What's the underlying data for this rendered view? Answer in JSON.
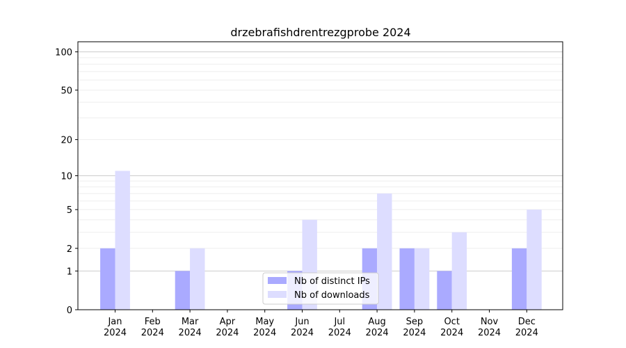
{
  "chart_data": {
    "type": "bar",
    "title": "drzebrafishdrentrezgprobe 2024",
    "xlabel": "",
    "ylabel": "",
    "y_scale": "symlog",
    "ylim": [
      0,
      120
    ],
    "y_ticks": [
      0,
      1,
      2,
      5,
      10,
      20,
      50,
      100
    ],
    "grid": true,
    "legend_position": "bottom-center",
    "categories": [
      [
        "Jan",
        "2024"
      ],
      [
        "Feb",
        "2024"
      ],
      [
        "Mar",
        "2024"
      ],
      [
        "Apr",
        "2024"
      ],
      [
        "May",
        "2024"
      ],
      [
        "Jun",
        "2024"
      ],
      [
        "Jul",
        "2024"
      ],
      [
        "Aug",
        "2024"
      ],
      [
        "Sep",
        "2024"
      ],
      [
        "Oct",
        "2024"
      ],
      [
        "Nov",
        "2024"
      ],
      [
        "Dec",
        "2024"
      ]
    ],
    "series": [
      {
        "name": "Nb of distinct IPs",
        "color": "#aaaaff",
        "values": [
          2,
          0,
          1,
          0,
          0,
          1,
          0,
          2,
          2,
          1,
          0,
          2
        ]
      },
      {
        "name": "Nb of downloads",
        "color": "#ddddff",
        "values": [
          11,
          0,
          2,
          0,
          0,
          4,
          0,
          7,
          2,
          3,
          0,
          5
        ]
      }
    ]
  }
}
